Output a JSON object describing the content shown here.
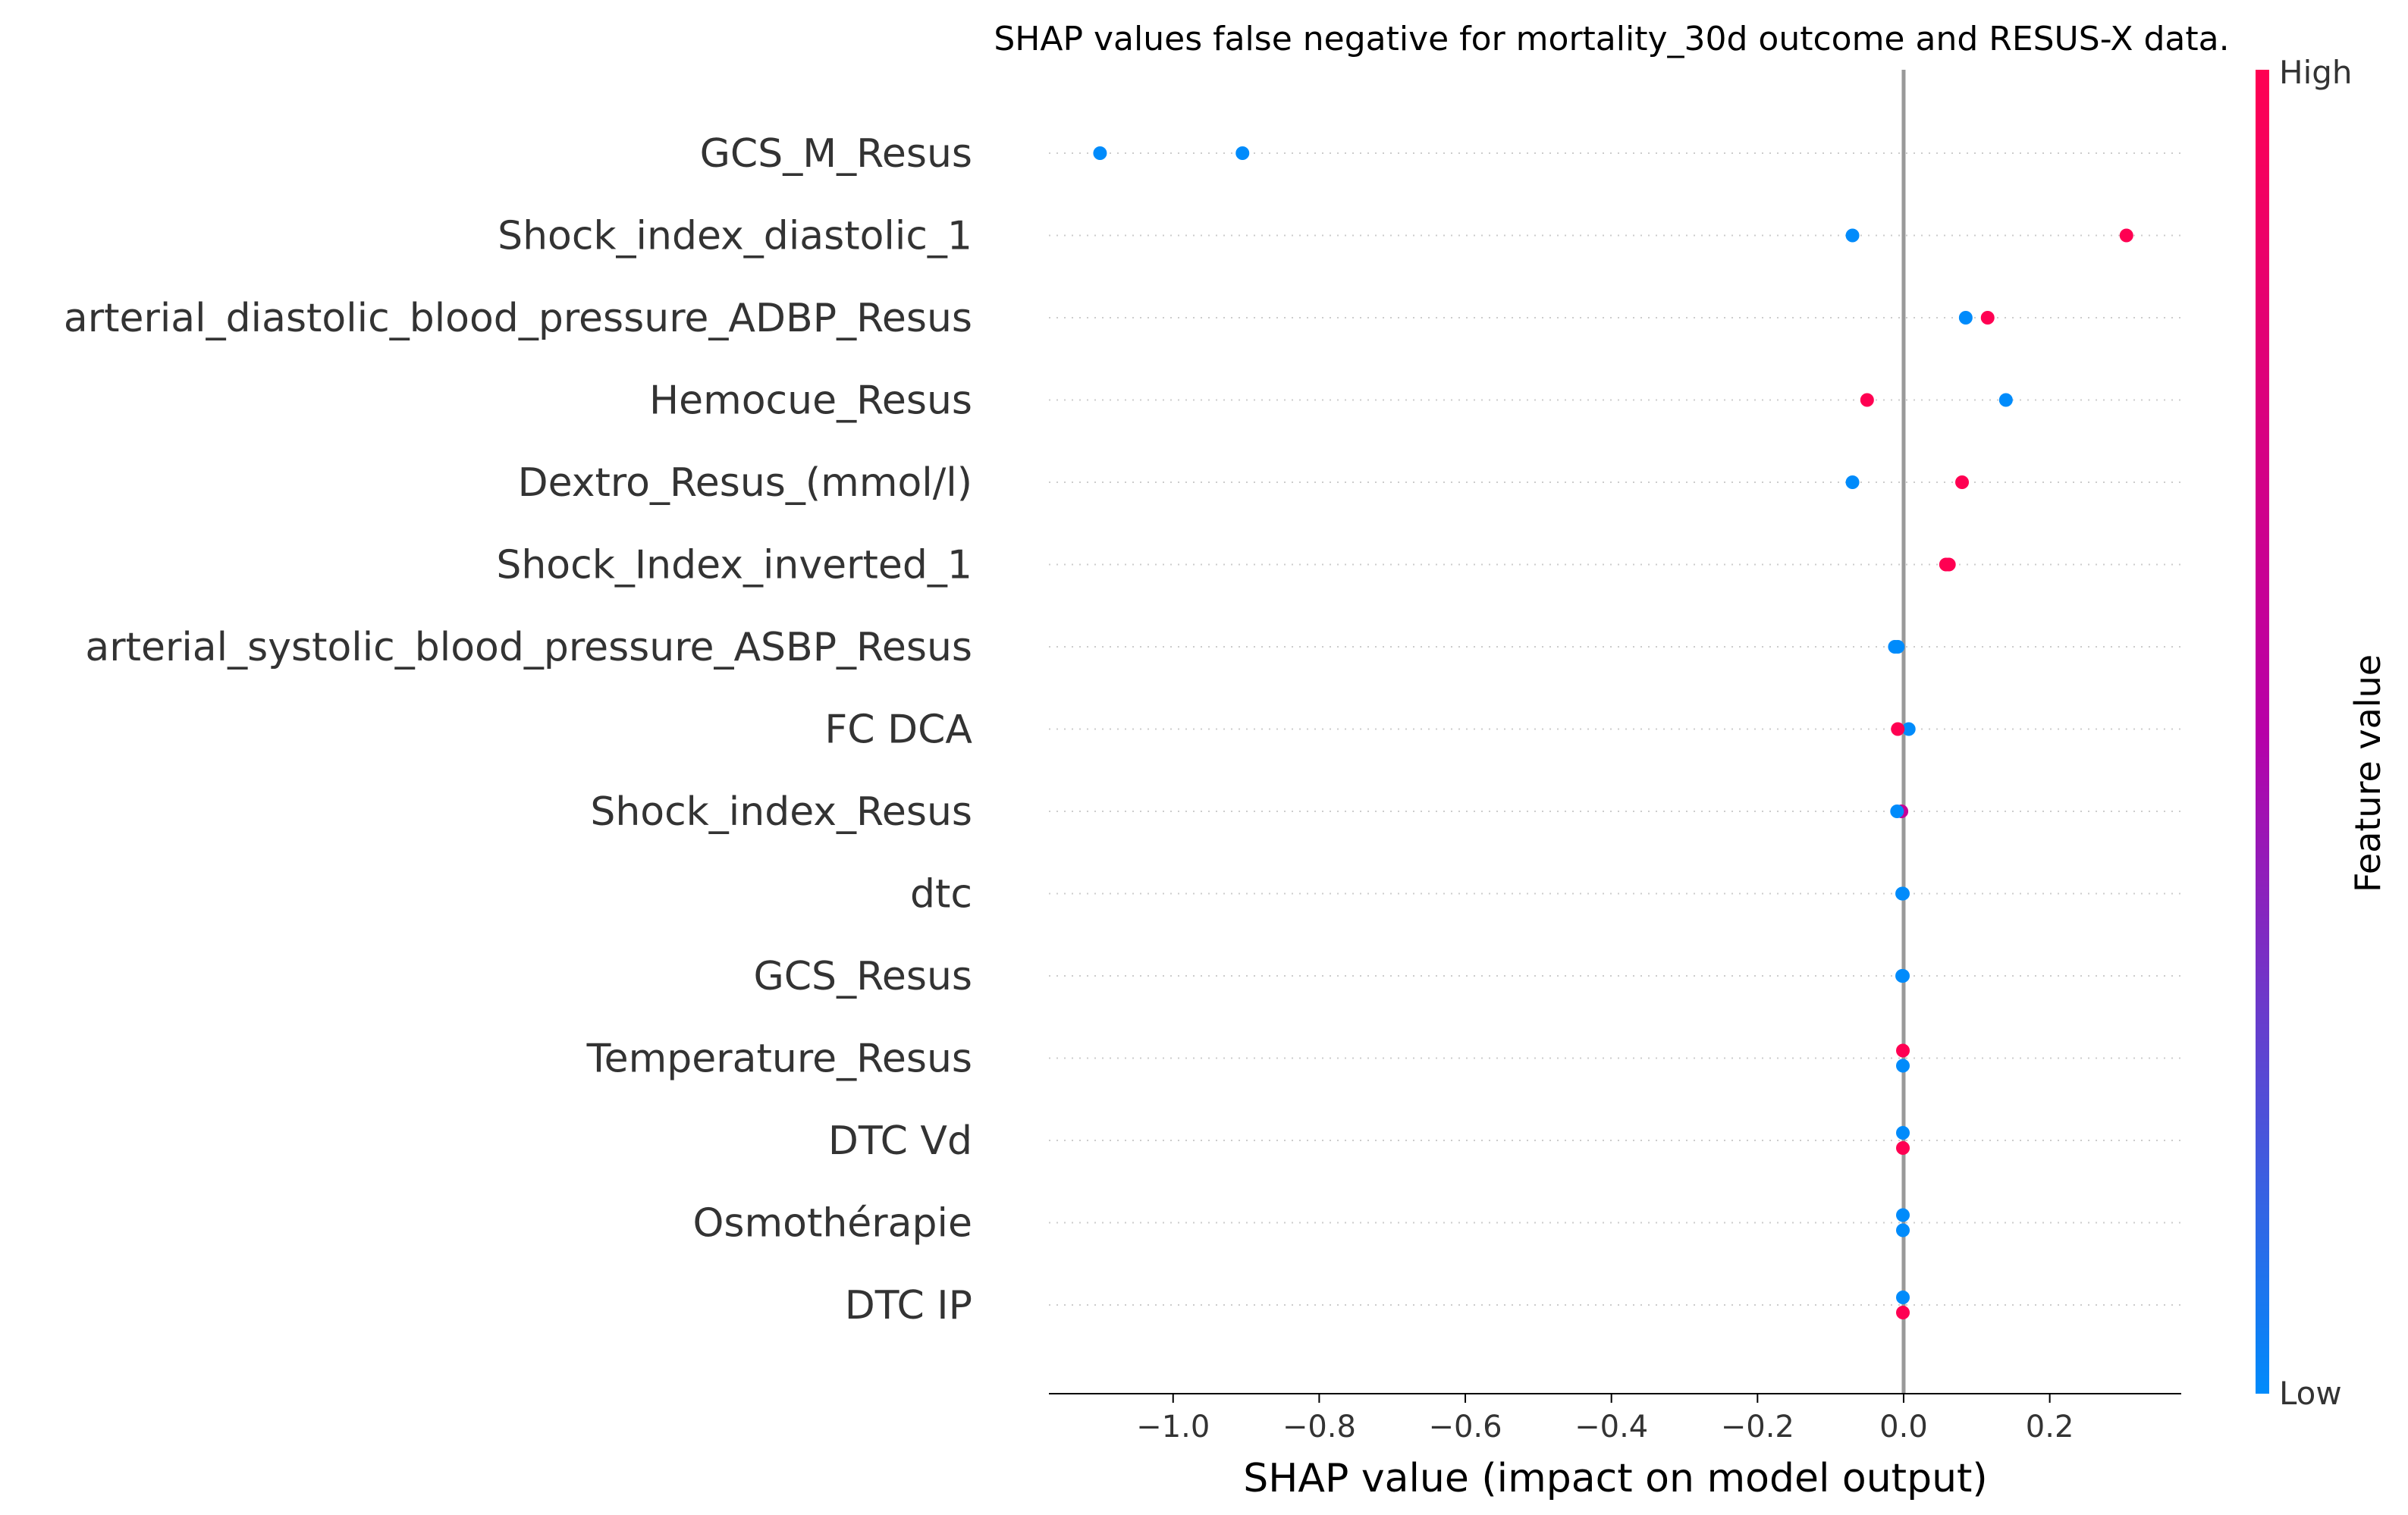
{
  "chart_data": {
    "type": "scatter",
    "title": "SHAP values false negative for mortality_30d outcome and RESUS-X data.",
    "xlabel": "SHAP value (impact on model output)",
    "xlim": [
      -1.17,
      0.38
    ],
    "xticks": [
      -1.0,
      -0.8,
      -0.6,
      -0.4,
      -0.2,
      0.0,
      0.2
    ],
    "xtick_labels": [
      "−1.0",
      "−0.8",
      "−0.6",
      "−0.4",
      "−0.2",
      "0.0",
      "0.2"
    ],
    "zero_line": true,
    "row_grid": "dotted",
    "features": [
      {
        "name": "GCS_M_Resus",
        "points": [
          {
            "x": -1.1,
            "v": 0,
            "dy": 0
          },
          {
            "x": -0.905,
            "v": 0,
            "dy": 0
          }
        ]
      },
      {
        "name": "Shock_index_diastolic_1",
        "points": [
          {
            "x": -0.07,
            "v": 0,
            "dy": 0
          },
          {
            "x": 0.305,
            "v": 1,
            "dy": 0
          }
        ]
      },
      {
        "name": "arterial_diastolic_blood_pressure_ADBP_Resus",
        "points": [
          {
            "x": 0.085,
            "v": 0,
            "dy": 0
          },
          {
            "x": 0.115,
            "v": 1,
            "dy": 0
          }
        ]
      },
      {
        "name": "Hemocue_Resus",
        "points": [
          {
            "x": -0.05,
            "v": 1,
            "dy": 0
          },
          {
            "x": 0.14,
            "v": 0,
            "dy": 0
          }
        ]
      },
      {
        "name": "Dextro_Resus_(mmol/l)",
        "points": [
          {
            "x": -0.07,
            "v": 0,
            "dy": 0
          },
          {
            "x": 0.08,
            "v": 1,
            "dy": 0
          }
        ]
      },
      {
        "name": "Shock_Index_inverted_1",
        "points": [
          {
            "x": 0.058,
            "v": 1,
            "dy": 0
          },
          {
            "x": 0.062,
            "v": 1,
            "dy": 0
          }
        ]
      },
      {
        "name": "arterial_systolic_blood_pressure_ASBP_Resus",
        "points": [
          {
            "x": -0.012,
            "v": 0,
            "dy": 0
          },
          {
            "x": -0.008,
            "v": 0,
            "dy": 0
          }
        ]
      },
      {
        "name": "FC  DCA",
        "points": [
          {
            "x": 0.007,
            "v": 0,
            "dy": 0
          },
          {
            "x": -0.008,
            "v": 1,
            "dy": 0
          }
        ]
      },
      {
        "name": "Shock_index_Resus",
        "points": [
          {
            "x": -0.003,
            "v": 0.6,
            "dy": 0
          },
          {
            "x": -0.009,
            "v": 0,
            "dy": 0
          }
        ]
      },
      {
        "name": "dtc",
        "points": [
          {
            "x": -0.002,
            "v": 0,
            "dy": 0
          },
          {
            "x": -0.001,
            "v": 0,
            "dy": 0
          }
        ]
      },
      {
        "name": "GCS_Resus",
        "points": [
          {
            "x": -0.002,
            "v": 0,
            "dy": 0
          },
          {
            "x": -0.001,
            "v": 0,
            "dy": 0
          }
        ]
      },
      {
        "name": "Temperature_Resus",
        "points": [
          {
            "x": -0.001,
            "v": 1,
            "dy": -1
          },
          {
            "x": -0.001,
            "v": 0,
            "dy": 1
          }
        ]
      },
      {
        "name": "DTC Vd",
        "points": [
          {
            "x": -0.001,
            "v": 0,
            "dy": -1
          },
          {
            "x": -0.001,
            "v": 1,
            "dy": 1
          }
        ]
      },
      {
        "name": "Osmothérapie",
        "points": [
          {
            "x": -0.001,
            "v": 0,
            "dy": -1
          },
          {
            "x": -0.001,
            "v": 0,
            "dy": 1
          }
        ]
      },
      {
        "name": "DTC IP",
        "points": [
          {
            "x": -0.001,
            "v": 0,
            "dy": -1
          },
          {
            "x": -0.001,
            "v": 1,
            "dy": 1
          }
        ]
      }
    ],
    "colorbar": {
      "label": "Feature value",
      "high_label": "High",
      "low_label": "Low",
      "low_color": "#008bfb",
      "mid_color": "#b700a8",
      "high_color": "#ff0052"
    }
  }
}
